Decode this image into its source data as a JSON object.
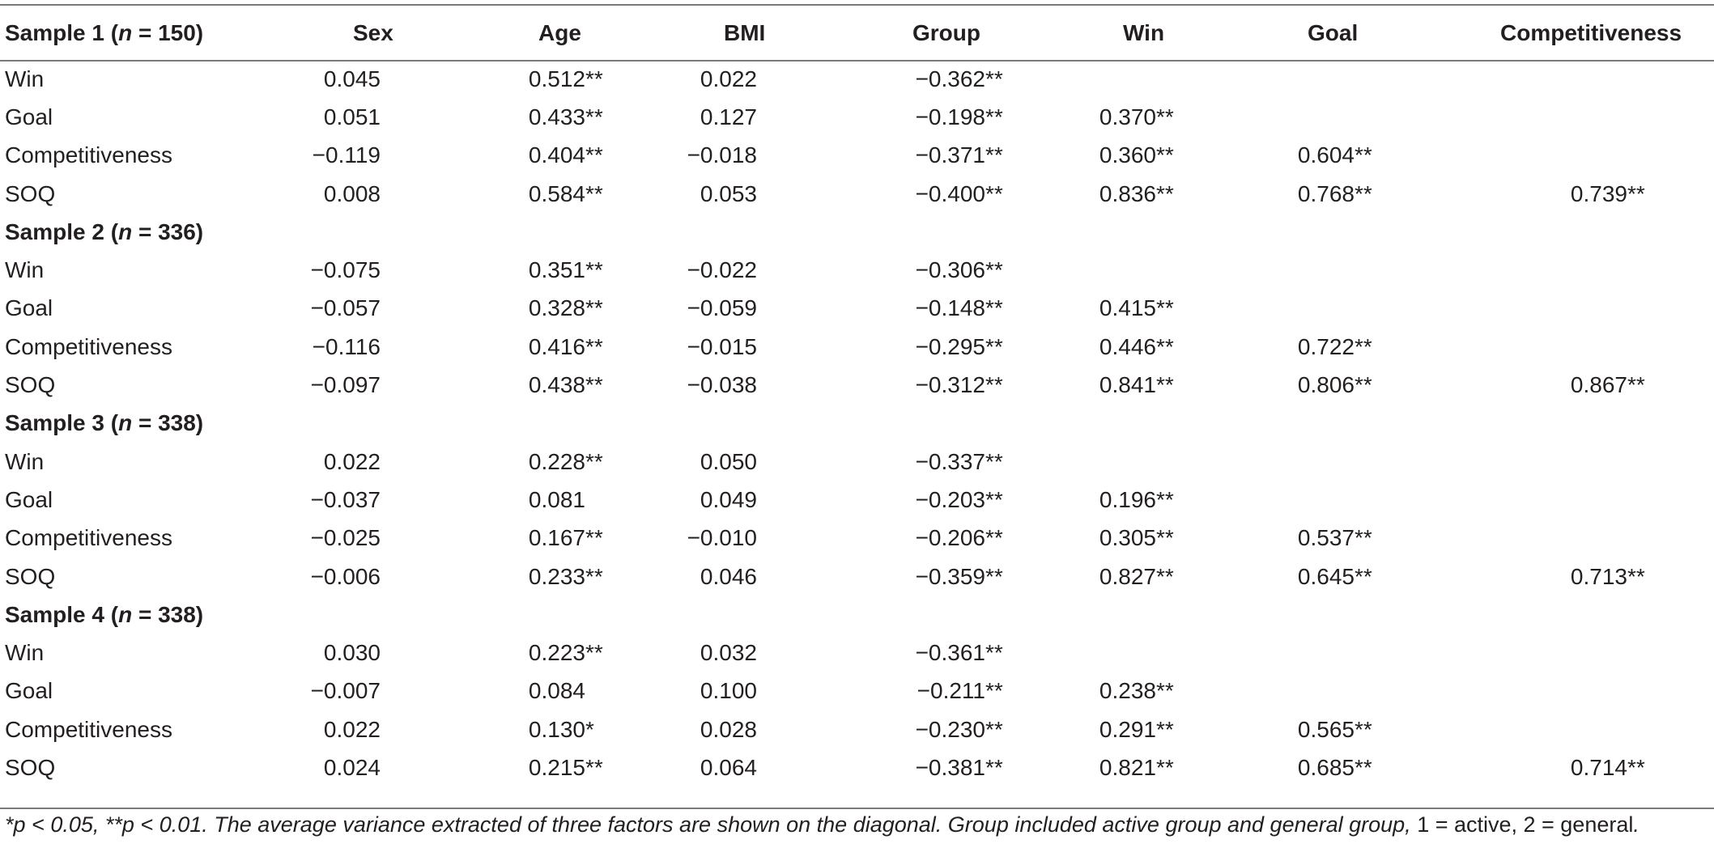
{
  "table": {
    "columns": [
      "Sex",
      "Age",
      "BMI",
      "Group",
      "Win",
      "Goal",
      "Competitiveness"
    ],
    "groups": [
      {
        "label_prefix": "Sample 1 (",
        "label_n": "n",
        "label_suffix": " = 150)",
        "rows": [
          {
            "label": "Win",
            "values": [
              "0.045",
              "0.512**",
              "0.022",
              "−0.362**",
              "",
              "",
              ""
            ]
          },
          {
            "label": "Goal",
            "values": [
              "0.051",
              "0.433**",
              "0.127",
              "−0.198**",
              "0.370**",
              "",
              ""
            ]
          },
          {
            "label": "Competitiveness",
            "values": [
              "−0.119",
              "0.404**",
              "−0.018",
              "−0.371**",
              "0.360**",
              "0.604**",
              ""
            ]
          },
          {
            "label": "SOQ",
            "values": [
              "0.008",
              "0.584**",
              "0.053",
              "−0.400**",
              "0.836**",
              "0.768**",
              "0.739**"
            ]
          }
        ]
      },
      {
        "label_prefix": "Sample 2 (",
        "label_n": "n",
        "label_suffix": " = 336)",
        "rows": [
          {
            "label": "Win",
            "values": [
              "−0.075",
              "0.351**",
              "−0.022",
              "−0.306**",
              "",
              "",
              ""
            ]
          },
          {
            "label": "Goal",
            "values": [
              "−0.057",
              "0.328**",
              "−0.059",
              "−0.148**",
              "0.415**",
              "",
              ""
            ]
          },
          {
            "label": "Competitiveness",
            "values": [
              "−0.116",
              "0.416**",
              "−0.015",
              "−0.295**",
              "0.446**",
              "0.722**",
              ""
            ]
          },
          {
            "label": "SOQ",
            "values": [
              "−0.097",
              "0.438**",
              "−0.038",
              "−0.312**",
              "0.841**",
              "0.806**",
              "0.867**"
            ]
          }
        ]
      },
      {
        "label_prefix": "Sample 3 (",
        "label_n": "n",
        "label_suffix": " = 338)",
        "rows": [
          {
            "label": "Win",
            "values": [
              "0.022",
              "0.228**",
              "0.050",
              "−0.337**",
              "",
              "",
              ""
            ]
          },
          {
            "label": "Goal",
            "values": [
              "−0.037",
              "0.081",
              "0.049",
              "−0.203**",
              "0.196**",
              "",
              ""
            ]
          },
          {
            "label": "Competitiveness",
            "values": [
              "−0.025",
              "0.167**",
              "−0.010",
              "−0.206**",
              "0.305**",
              "0.537**",
              ""
            ]
          },
          {
            "label": "SOQ",
            "values": [
              "−0.006",
              "0.233**",
              "0.046",
              "−0.359**",
              "0.827**",
              "0.645**",
              "0.713**"
            ]
          }
        ]
      },
      {
        "label_prefix": "Sample 4 (",
        "label_n": "n",
        "label_suffix": " = 338)",
        "rows": [
          {
            "label": "Win",
            "values": [
              "0.030",
              "0.223**",
              "0.032",
              "−0.361**",
              "",
              "",
              ""
            ]
          },
          {
            "label": "Goal",
            "values": [
              "−0.007",
              "0.084",
              "0.100",
              "−0.211**",
              "0.238**",
              "",
              ""
            ]
          },
          {
            "label": "Competitiveness",
            "values": [
              "0.022",
              "0.130*",
              "0.028",
              "−0.230**",
              "0.291**",
              "0.565**",
              ""
            ]
          },
          {
            "label": "SOQ",
            "values": [
              "0.024",
              "0.215**",
              "0.064",
              "−0.381**",
              "0.821**",
              "0.685**",
              "0.714**"
            ]
          }
        ]
      }
    ]
  },
  "footnote": {
    "p1_prefix": "*",
    "p1_var": "p",
    "p1_rest": " < 0.05, **",
    "p2_var": "p",
    "p2_rest": " < 0.01. The average variance extracted of three factors are shown on the diagonal. Group included active group and general group, ",
    "coding": "1 = active, 2 = general",
    "end": "."
  }
}
